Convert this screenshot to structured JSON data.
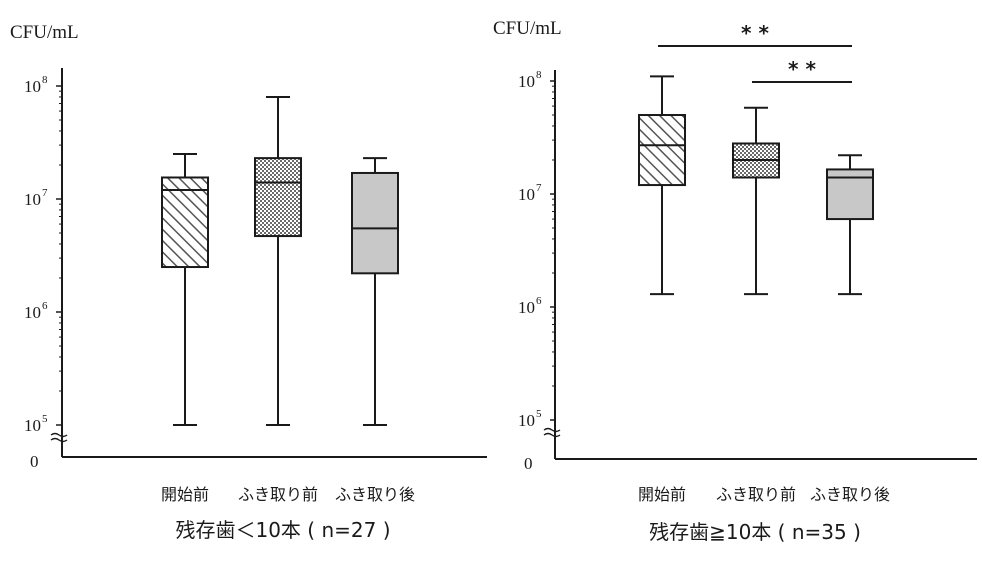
{
  "chart_data": [
    {
      "type": "box",
      "title": "残存歯＜10本 ( n=27 )",
      "ylabel": "CFU/mL",
      "yscale": "log",
      "ylim": [
        100000,
        100000000
      ],
      "yticks": [
        {
          "base": "10",
          "exp": "5"
        },
        {
          "base": "10",
          "exp": "6"
        },
        {
          "base": "10",
          "exp": "7"
        },
        {
          "base": "10",
          "exp": "8"
        }
      ],
      "yzero_label": "0",
      "categories": [
        "開始前",
        "ふき取り前",
        "ふき取り後"
      ],
      "boxes": [
        {
          "min": 100000,
          "q1": 2500000,
          "median": 12000000,
          "q3": 15500000,
          "max": 25000000,
          "fill": "hatch"
        },
        {
          "min": 100000,
          "q1": 4700000,
          "median": 14000000,
          "q3": 23000000,
          "max": 80000000,
          "fill": "checker"
        },
        {
          "min": 100000,
          "q1": 2200000,
          "median": 5500000,
          "q3": 17000000,
          "max": 23000000,
          "fill": "gray"
        }
      ],
      "significance": []
    },
    {
      "type": "box",
      "title": "残存歯≧10本 ( n=35 )",
      "ylabel": "CFU/mL",
      "yscale": "log",
      "ylim": [
        100000,
        100000000
      ],
      "yticks": [
        {
          "base": "10",
          "exp": "5"
        },
        {
          "base": "10",
          "exp": "6"
        },
        {
          "base": "10",
          "exp": "7"
        },
        {
          "base": "10",
          "exp": "8"
        }
      ],
      "yzero_label": "0",
      "categories": [
        "開始前",
        "ふき取り前",
        "ふき取り後"
      ],
      "boxes": [
        {
          "min": 1300000,
          "q1": 12000000,
          "median": 27000000,
          "q3": 50000000,
          "max": 110000000,
          "fill": "hatch"
        },
        {
          "min": 1300000,
          "q1": 14000000,
          "median": 20000000,
          "q3": 28000000,
          "max": 58000000,
          "fill": "checker"
        },
        {
          "min": 1300000,
          "q1": 6000000,
          "median": 14000000,
          "q3": 16500000,
          "max": 22000000,
          "fill": "gray"
        }
      ],
      "significance": [
        {
          "from": 0,
          "to": 2,
          "label": "* *"
        },
        {
          "from": 1,
          "to": 2,
          "label": "* *"
        }
      ]
    }
  ],
  "colors": {
    "stroke": "#1a1a1a",
    "gray_fill": "#c8c8c8",
    "hatch_fill": "#ffffff"
  }
}
